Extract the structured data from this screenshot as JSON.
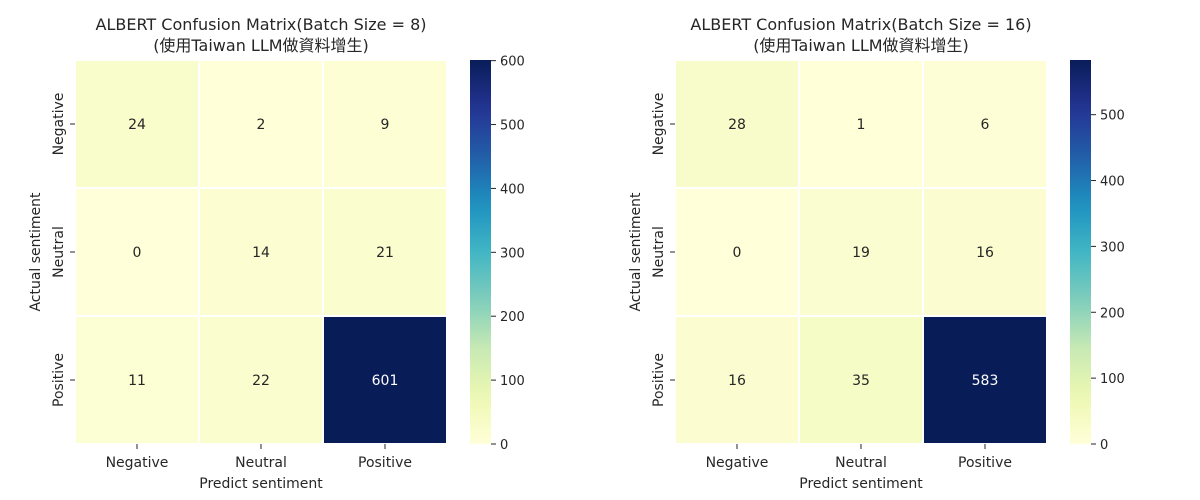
{
  "chart_data": [
    {
      "type": "heatmap",
      "title": "ALBERT Confusion Matrix(Batch Size = 8)",
      "subtitle": "(使用Taiwan LLM做資料增生)",
      "xlabel": "Predict sentiment",
      "ylabel": "Actual sentiment",
      "x_categories": [
        "Negative",
        "Neutral",
        "Positive"
      ],
      "y_categories": [
        "Negative",
        "Neutral",
        "Positive"
      ],
      "values": [
        [
          24,
          2,
          9
        ],
        [
          0,
          14,
          21
        ],
        [
          11,
          22,
          601
        ]
      ],
      "colorscale": "YlGnBu",
      "colorbar": {
        "range": [
          0,
          601
        ],
        "ticks": [
          0,
          100,
          200,
          300,
          400,
          500,
          600
        ]
      }
    },
    {
      "type": "heatmap",
      "title": "ALBERT Confusion Matrix(Batch Size = 16)",
      "subtitle": "(使用Taiwan LLM做資料增生)",
      "xlabel": "Predict sentiment",
      "ylabel": "Actual sentiment",
      "x_categories": [
        "Negative",
        "Neutral",
        "Positive"
      ],
      "y_categories": [
        "Negative",
        "Neutral",
        "Positive"
      ],
      "values": [
        [
          28,
          1,
          6
        ],
        [
          0,
          19,
          16
        ],
        [
          16,
          35,
          583
        ]
      ],
      "colorscale": "YlGnBu",
      "colorbar": {
        "range": [
          0,
          583
        ],
        "ticks": [
          0,
          100,
          200,
          300,
          400,
          500
        ]
      }
    }
  ]
}
